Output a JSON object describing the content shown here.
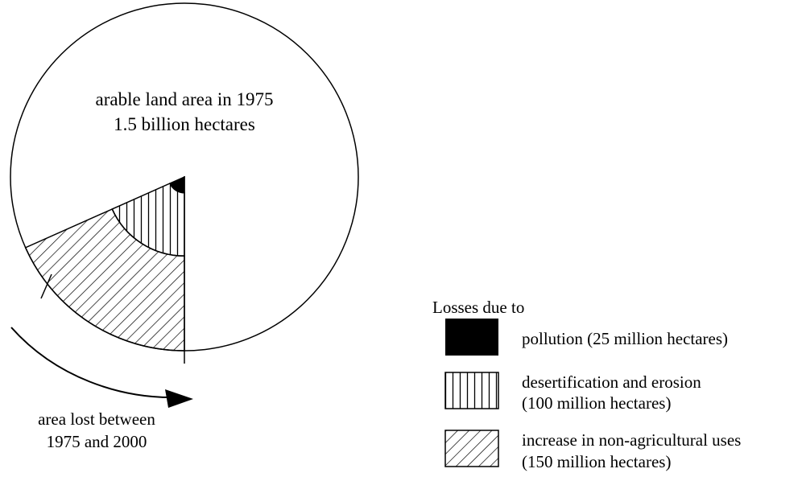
{
  "chart_data": {
    "type": "pie",
    "title": "",
    "circle_label": [
      "arable land area in 1975",
      "1.5 billion hectares"
    ],
    "total": {
      "label": "arable land area in 1975",
      "value": 1500,
      "unit": "million hectares"
    },
    "lost_area_label": [
      "area lost between",
      "1975 and 2000"
    ],
    "lost_total": 275,
    "legend": {
      "title": "Losses due to",
      "position": "bottom-right"
    },
    "series": [
      {
        "name": "pollution",
        "label_lines": [
          "pollution (25 million hectares)"
        ],
        "value": 25,
        "fill": "solid"
      },
      {
        "name": "desertification and erosion",
        "label_lines": [
          "desertification and erosion",
          "(100 million hectares)"
        ],
        "value": 100,
        "fill": "vertical-lines"
      },
      {
        "name": "increase in non-agricultural uses",
        "label_lines": [
          "increase in non-agricultural uses",
          "(150 million hectares)"
        ],
        "value": 150,
        "fill": "diagonal-hatch"
      }
    ],
    "colors": {
      "ink": "#000000",
      "background": "#ffffff"
    }
  }
}
